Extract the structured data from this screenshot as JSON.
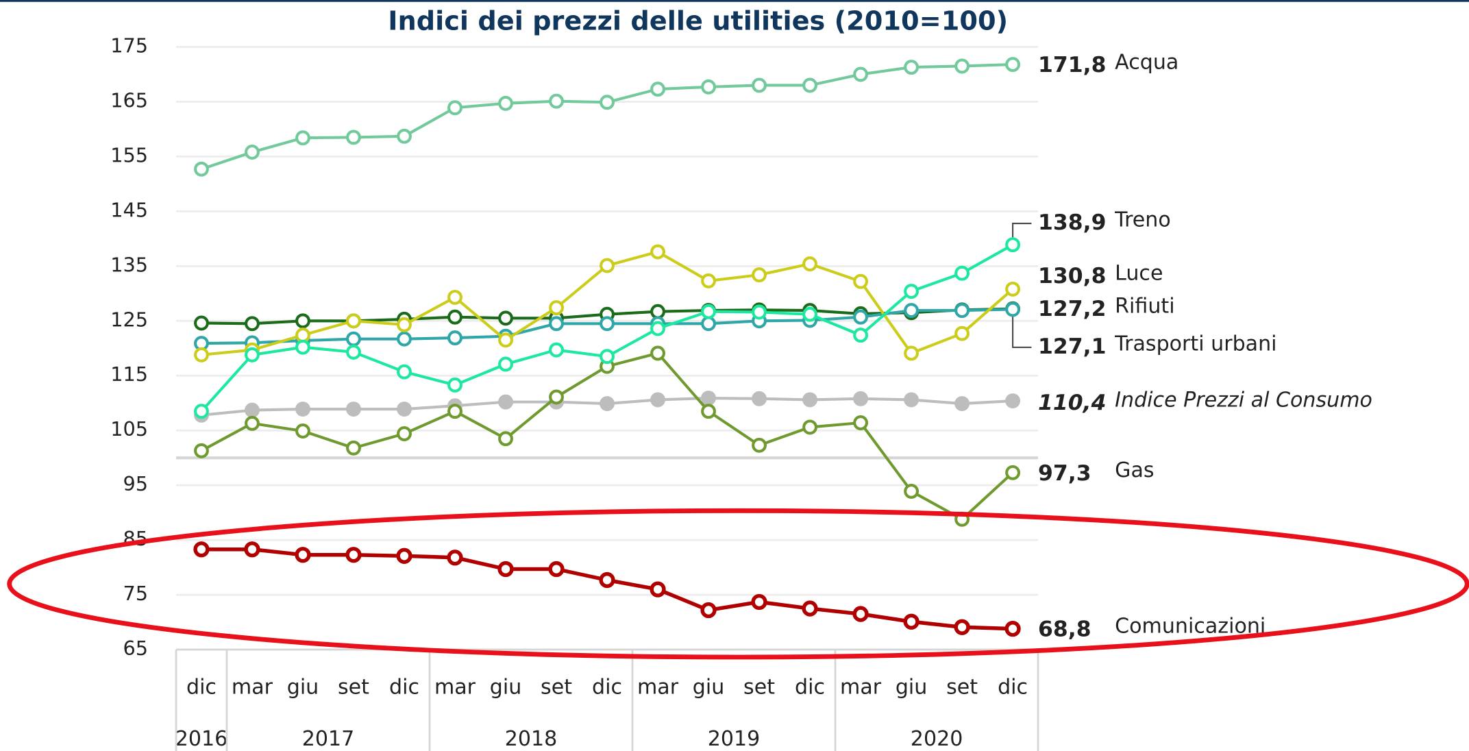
{
  "chart_data": {
    "type": "line",
    "title": "Indici dei prezzi delle utilities (2010=100)",
    "categories": [
      "dic",
      "mar",
      "giu",
      "set",
      "dic",
      "mar",
      "giu",
      "set",
      "dic",
      "mar",
      "giu",
      "set",
      "dic",
      "mar",
      "giu",
      "set",
      "dic"
    ],
    "years": [
      "2016",
      "2017",
      "2017",
      "2017",
      "2017",
      "2018",
      "2018",
      "2018",
      "2018",
      "2019",
      "2019",
      "2019",
      "2019",
      "2020",
      "2020",
      "2020",
      "2020"
    ],
    "ylim": [
      65,
      175
    ],
    "yticks": [
      65,
      75,
      85,
      95,
      105,
      115,
      125,
      135,
      145,
      155,
      165,
      175
    ],
    "grid": true,
    "reference_line": 100,
    "series": [
      {
        "name": "Acqua",
        "color": "#72c99b",
        "end_label": "171,8",
        "values": [
          152.7,
          155.8,
          158.4,
          158.5,
          158.7,
          163.9,
          164.7,
          165.1,
          164.9,
          167.3,
          167.7,
          168.0,
          168.0,
          170.0,
          171.3,
          171.5,
          171.8
        ]
      },
      {
        "name": "Treno",
        "color": "#1de8a0",
        "end_label": "138,9",
        "values": [
          108.5,
          118.8,
          120.2,
          119.3,
          115.7,
          113.3,
          117.1,
          119.7,
          118.5,
          123.6,
          126.7,
          126.6,
          126.2,
          122.4,
          130.4,
          133.7,
          138.9
        ]
      },
      {
        "name": "Luce",
        "color": "#cccc1a",
        "end_label": "130,8",
        "values": [
          118.8,
          119.7,
          122.4,
          125.0,
          124.3,
          129.3,
          121.5,
          127.4,
          135.1,
          137.6,
          132.3,
          133.4,
          135.4,
          132.2,
          119.1,
          122.7,
          130.8
        ]
      },
      {
        "name": "Rifiuti",
        "color": "#1b6b1b",
        "end_label": "127,2",
        "values": [
          124.6,
          124.5,
          125.0,
          125.0,
          125.3,
          125.7,
          125.5,
          125.5,
          126.2,
          126.7,
          126.9,
          127.0,
          126.9,
          126.3,
          126.5,
          127.0,
          127.2
        ]
      },
      {
        "name": "Trasporti urbani",
        "color": "#2fa6a8",
        "end_label": "127,1",
        "values": [
          120.9,
          121.0,
          121.4,
          121.7,
          121.7,
          121.9,
          122.2,
          124.5,
          124.5,
          124.5,
          124.5,
          125.0,
          125.1,
          125.7,
          126.9,
          126.9,
          127.1
        ]
      },
      {
        "name": "Indice Prezzi al Consumo",
        "color": "#bdbdbd",
        "end_label": "110,4",
        "italic": true,
        "filled": true,
        "values": [
          107.8,
          108.7,
          108.9,
          108.9,
          108.9,
          109.5,
          110.2,
          110.2,
          109.9,
          110.6,
          110.9,
          110.8,
          110.6,
          110.8,
          110.6,
          109.9,
          110.4
        ]
      },
      {
        "name": "Gas",
        "color": "#6f9a30",
        "end_label": "97,3",
        "values": [
          101.3,
          106.3,
          104.9,
          101.8,
          104.4,
          108.5,
          103.5,
          111.1,
          116.7,
          119.1,
          108.5,
          102.3,
          105.6,
          106.4,
          93.9,
          88.8,
          97.3
        ]
      },
      {
        "name": "Comunicazioni",
        "color": "#b00000",
        "end_label": "68,8",
        "values": [
          83.3,
          83.3,
          82.3,
          82.3,
          82.1,
          81.8,
          79.7,
          79.7,
          77.7,
          76.0,
          72.2,
          73.7,
          72.5,
          71.5,
          70.1,
          69.1,
          68.8
        ]
      }
    ]
  }
}
